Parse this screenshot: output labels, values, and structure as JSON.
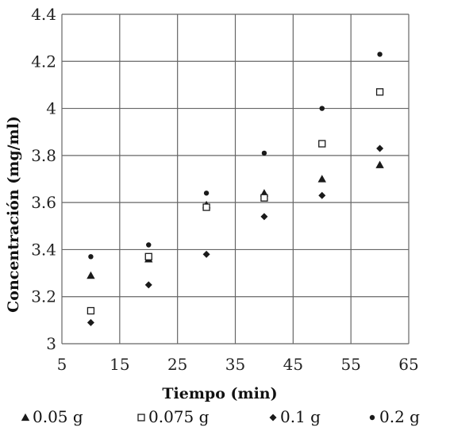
{
  "chart_data": {
    "type": "scatter",
    "xlabel": "Tiempo (min)",
    "ylabel": "Concentración (mg/ml)",
    "xlim": [
      5,
      65
    ],
    "ylim": [
      3,
      4.4
    ],
    "x_ticks": [
      "5",
      "15",
      "25",
      "35",
      "45",
      "55",
      "65"
    ],
    "y_ticks": [
      "3",
      "3.2",
      "3.4",
      "3.6",
      "3.8",
      "4",
      "4.2",
      "4.4"
    ],
    "grid": true,
    "legend_position": "bottom",
    "series": [
      {
        "name": "0.05 g",
        "marker": "triangle",
        "x": [
          10,
          20,
          30,
          40,
          50,
          60
        ],
        "y": [
          3.29,
          3.36,
          3.59,
          3.64,
          3.7,
          3.76
        ]
      },
      {
        "name": "0.075 g",
        "marker": "open-square",
        "x": [
          10,
          20,
          30,
          40,
          50,
          60
        ],
        "y": [
          3.14,
          3.37,
          3.58,
          3.62,
          3.85,
          4.07
        ]
      },
      {
        "name": "0.1 g",
        "marker": "diamond",
        "x": [
          10,
          20,
          30,
          40,
          50,
          60
        ],
        "y": [
          3.09,
          3.25,
          3.38,
          3.54,
          3.63,
          3.83
        ]
      },
      {
        "name": "0.2 g",
        "marker": "circle",
        "x": [
          10,
          20,
          30,
          40,
          50,
          60
        ],
        "y": [
          3.37,
          3.42,
          3.64,
          3.81,
          4.0,
          4.23
        ]
      }
    ],
    "marker_color": "#1a1a1a",
    "grid_color": "#666666"
  }
}
